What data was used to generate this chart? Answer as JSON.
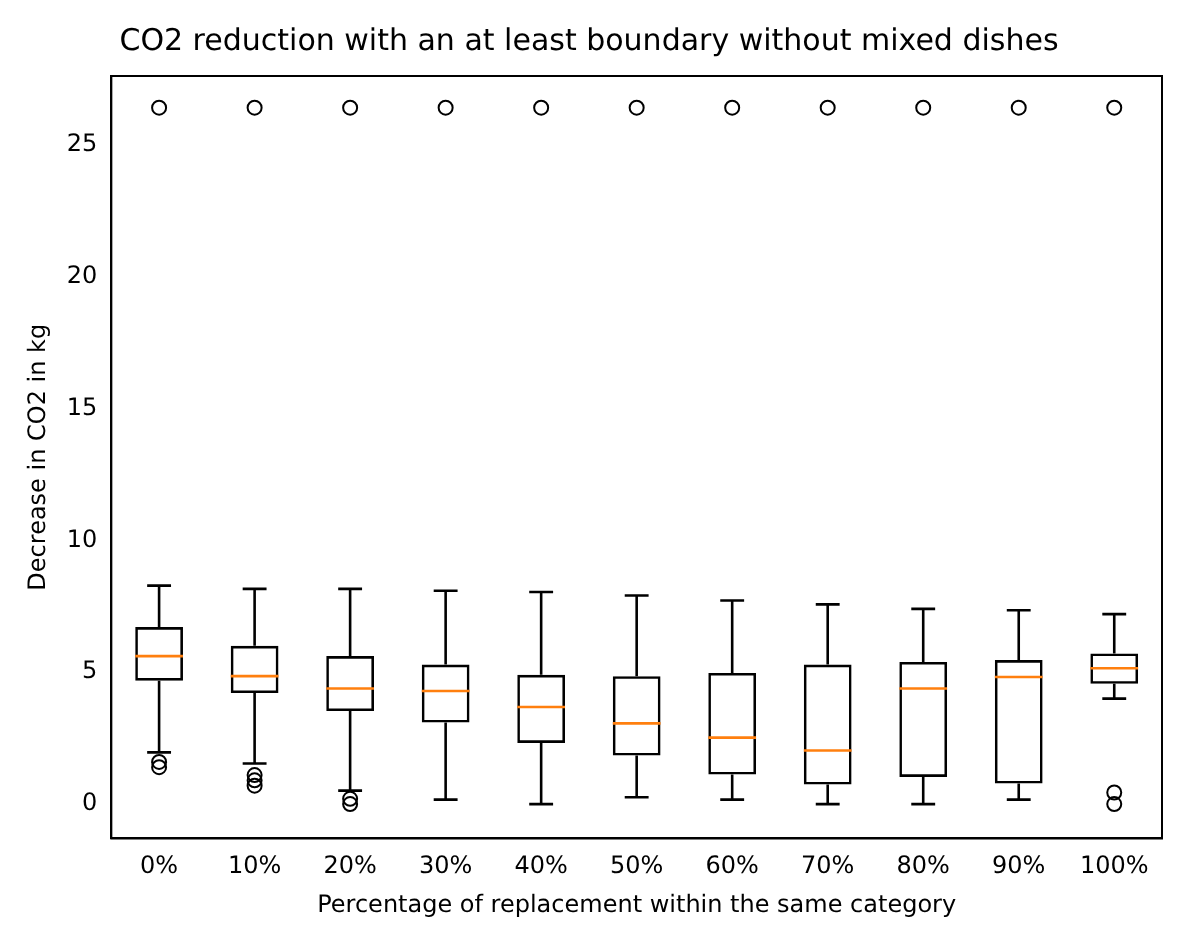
{
  "chart_data": {
    "type": "box",
    "title": "CO2 reduction with an at least boundary without mixed dishes",
    "xlabel": "Percentage of replacement within the same category",
    "ylabel": "Decrease in CO2 in kg",
    "categories": [
      "0%",
      "10%",
      "20%",
      "30%",
      "40%",
      "50%",
      "60%",
      "70%",
      "80%",
      "90%",
      "100%"
    ],
    "ylim": [
      -1.3,
      27.6
    ],
    "yticks": [
      0,
      5,
      10,
      15,
      20,
      25
    ],
    "grid": false,
    "legend": false,
    "series": [
      {
        "color": "#000000",
        "boxes": [
          {
            "low": 1.96,
            "q1": 4.68,
            "median": 5.61,
            "q3": 6.71,
            "high": 8.28,
            "outliers": [
              1.4,
              1.6,
              26.4
            ]
          },
          {
            "low": 1.54,
            "q1": 4.21,
            "median": 4.85,
            "q3": 6.0,
            "high": 8.16,
            "outliers": [
              0.7,
              0.9,
              1.1,
              26.4
            ]
          },
          {
            "low": 0.51,
            "q1": 3.53,
            "median": 4.38,
            "q3": 5.61,
            "high": 8.16,
            "outliers": [
              0,
              0.2,
              26.4
            ]
          },
          {
            "low": 0.17,
            "q1": 3.09,
            "median": 4.29,
            "q3": 5.29,
            "high": 8.09,
            "outliers": [
              26.4
            ]
          },
          {
            "low": 0,
            "q1": 2.32,
            "median": 3.68,
            "q3": 4.9,
            "high": 8.04,
            "outliers": [
              26.4
            ]
          },
          {
            "low": 0.26,
            "q1": 1.84,
            "median": 3.06,
            "q3": 4.85,
            "high": 7.91,
            "outliers": [
              26.4
            ]
          },
          {
            "low": 0.17,
            "q1": 1.12,
            "median": 2.52,
            "q3": 4.97,
            "high": 7.72,
            "outliers": [
              26.4
            ]
          },
          {
            "low": 0,
            "q1": 0.74,
            "median": 2.03,
            "q3": 5.29,
            "high": 7.57,
            "outliers": [
              26.4
            ]
          },
          {
            "low": 0,
            "q1": 1.03,
            "median": 4.38,
            "q3": 5.39,
            "high": 7.4,
            "outliers": [
              26.4
            ]
          },
          {
            "low": 0.17,
            "q1": 0.78,
            "median": 4.82,
            "q3": 5.46,
            "high": 7.35,
            "outliers": [
              26.4
            ]
          },
          {
            "low": 4.0,
            "q1": 4.56,
            "median": 5.15,
            "q3": 5.71,
            "high": 7.2,
            "outliers": [
              0,
              0.44,
              26.4
            ]
          }
        ]
      }
    ]
  }
}
